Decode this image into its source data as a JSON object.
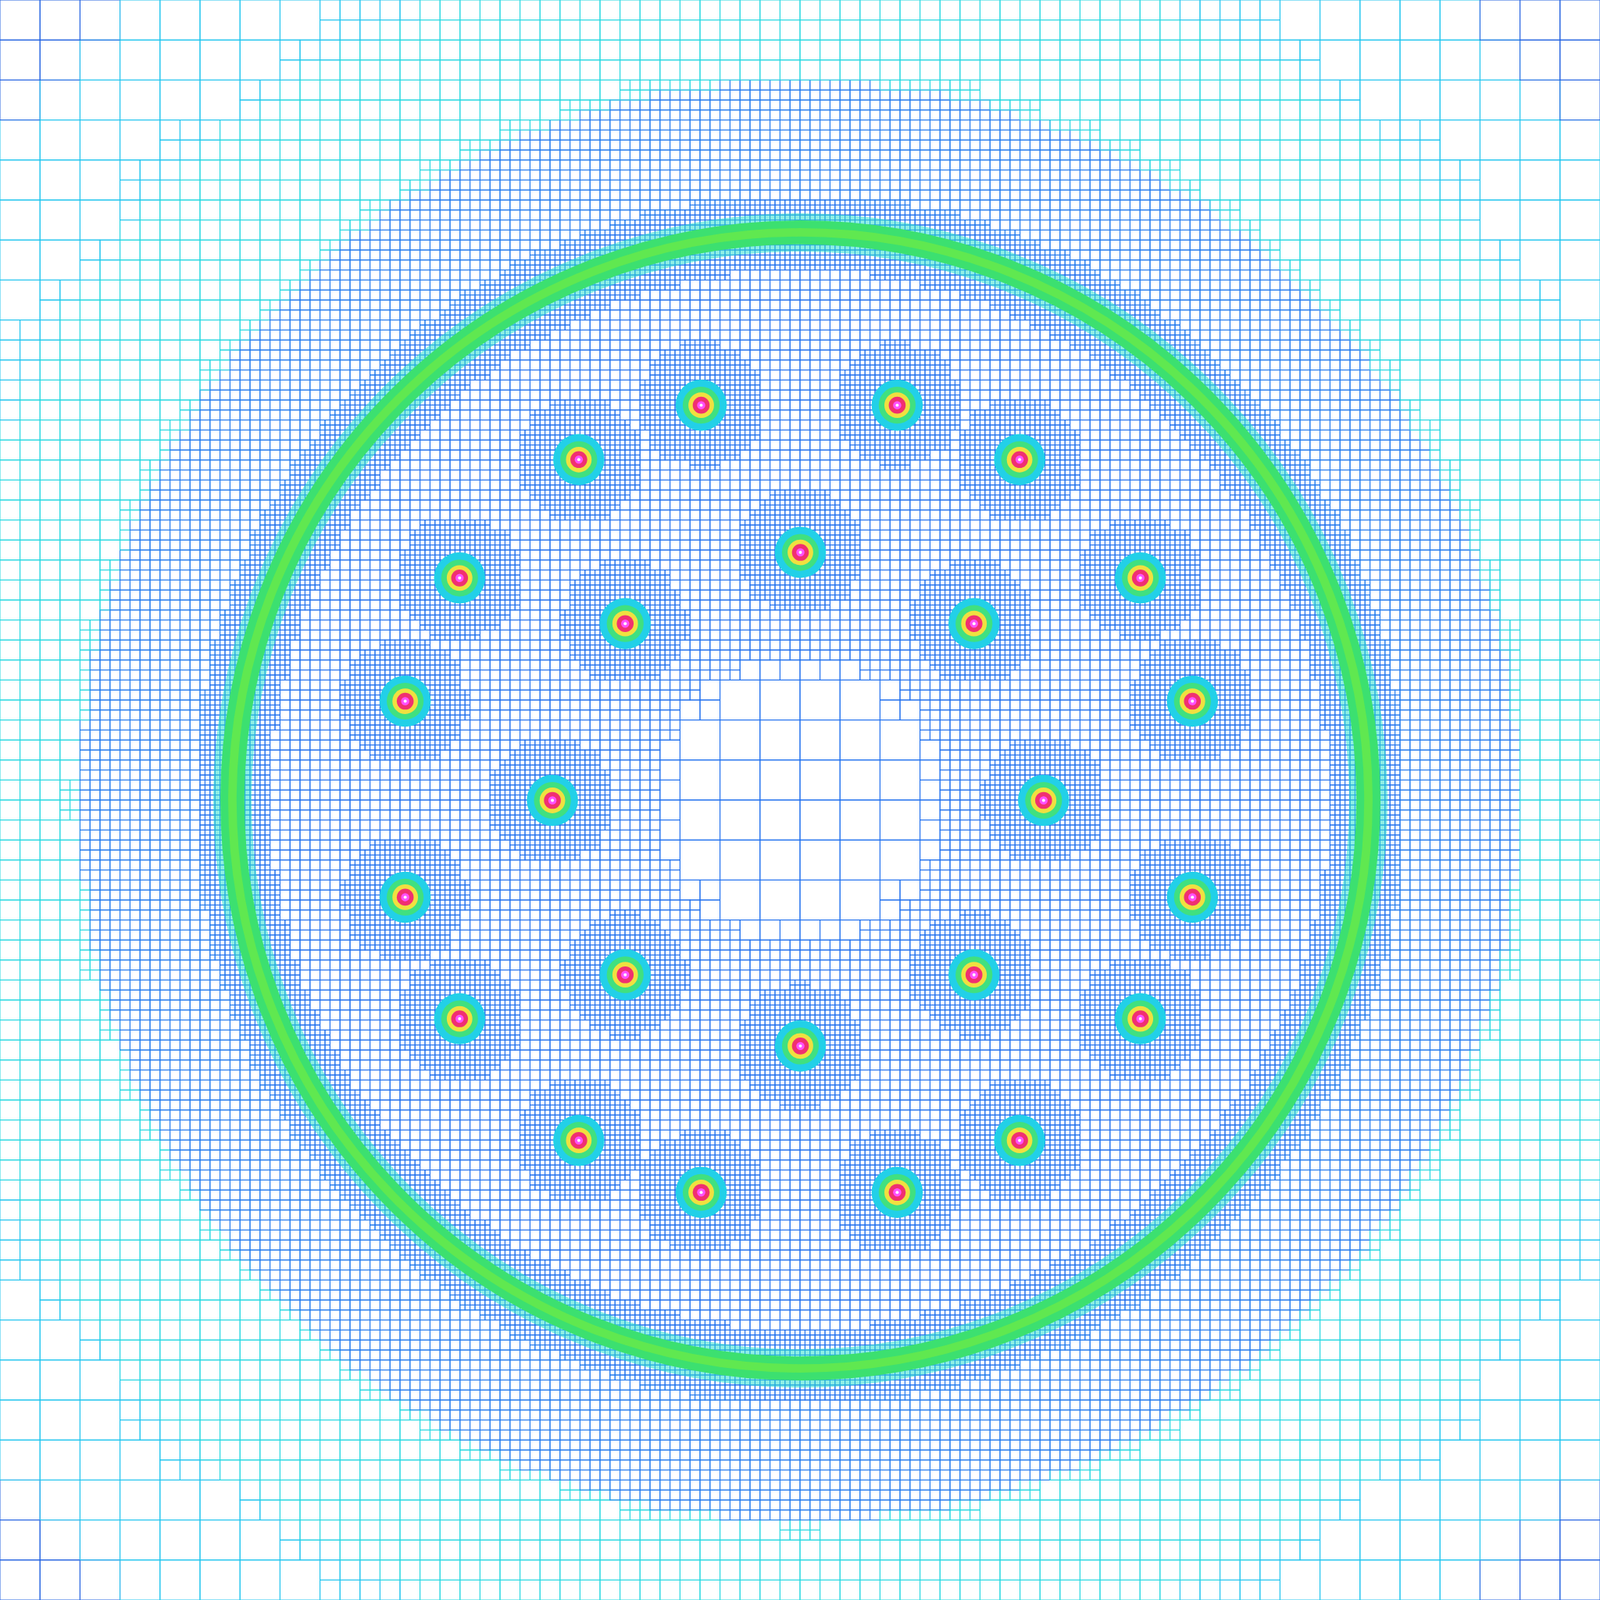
{
  "chart_data": {
    "type": "amr_mesh",
    "xlim": [
      -1,
      1
    ],
    "ylim": [
      -1,
      1
    ],
    "tick_labels": false,
    "grid": false,
    "mesh": {
      "base_cell": 0.1,
      "zones": [
        {
          "r": [
            0,
            0.2
          ],
          "cell": 0.05,
          "color": "#1f6fee"
        },
        {
          "r": [
            0.2,
            0.67
          ],
          "cell": 0.0125,
          "color": "#1f6fee"
        },
        {
          "r": [
            0.67,
            0.75
          ],
          "cell": 0.00625,
          "color": "#1f6fee"
        },
        {
          "r": [
            0.75,
            0.9
          ],
          "cell": 0.0125,
          "color": "#1f78ee"
        },
        {
          "r": [
            0.9,
            1.1
          ],
          "cell": 0.025,
          "color": "#22d8e0"
        },
        {
          "r": [
            1.1,
            1.3
          ],
          "cell": 0.05,
          "color": "#1cc4ee"
        },
        {
          "r": [
            1.3,
            1.5
          ],
          "cell": 0.05,
          "color": "#2060e0"
        }
      ],
      "spot_cell": 0.00625,
      "spot_refine_radius": 0.07
    },
    "ring": {
      "center": [
        0,
        0
      ],
      "radius": 0.71,
      "width": 0.03,
      "colors": [
        "#30e0d0",
        "#3ce070",
        "#60e850"
      ]
    },
    "spots": {
      "radius": 0.032,
      "colors": [
        "#22d0e8",
        "#40e080",
        "#f0e040",
        "#f03070",
        "#ff50ff"
      ],
      "x": [
        -0.124,
        0.121,
        -0.277,
        0.274,
        0.0,
        -0.426,
        0.425,
        -0.219,
        0.217,
        -0.494,
        0.49,
        -0.31,
        0.304,
        -0.494,
        0.49,
        -0.219,
        0.217,
        -0.426,
        0.425,
        0.0,
        -0.277,
        0.274,
        -0.124,
        0.121
      ],
      "y": [
        0.494,
        0.494,
        0.426,
        0.426,
        0.31,
        0.278,
        0.278,
        0.221,
        0.221,
        0.124,
        0.124,
        0.0,
        0.0,
        -0.121,
        -0.121,
        -0.218,
        -0.218,
        -0.273,
        -0.273,
        -0.307,
        -0.425,
        -0.425,
        -0.49,
        -0.49
      ]
    }
  }
}
